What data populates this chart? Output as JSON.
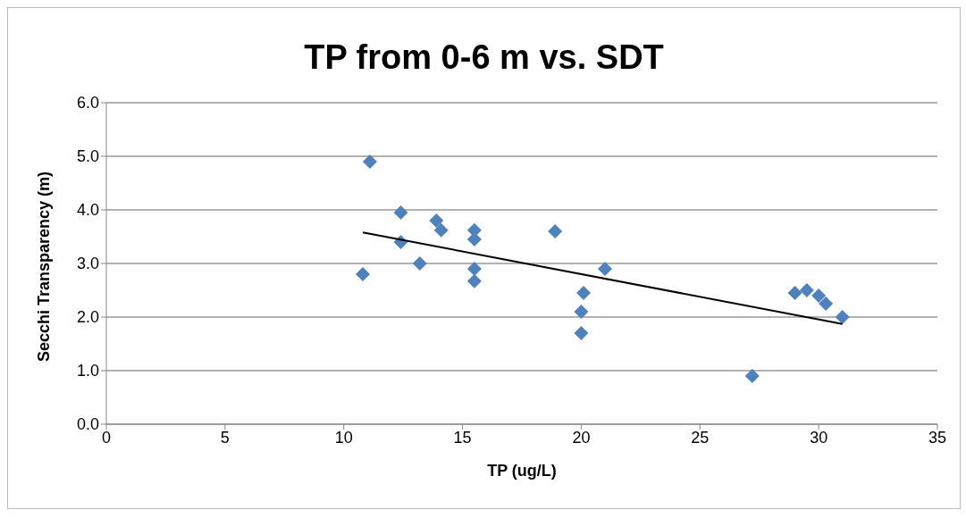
{
  "chart_data": {
    "type": "scatter",
    "title": "TP from 0-6 m vs. SDT",
    "xlabel": "TP (ug/L)",
    "ylabel": "Secchi Transparency (m)",
    "series": [
      {
        "type": "scatter",
        "color": "#4f81bd",
        "marker": "diamond",
        "x": [
          11.1,
          10.8,
          12.4,
          12.4,
          13.2,
          13.9,
          14.1,
          15.5,
          15.5,
          15.5,
          15.5,
          18.9,
          21.0,
          20.1,
          20.0,
          20.0,
          27.2,
          29.0,
          29.5,
          30.0,
          30.3,
          31.0
        ],
        "values": [
          4.9,
          2.8,
          3.95,
          3.4,
          3.0,
          3.8,
          3.62,
          3.62,
          3.45,
          2.9,
          2.67,
          3.6,
          2.9,
          2.45,
          2.1,
          1.7,
          0.9,
          2.45,
          2.5,
          2.4,
          2.25,
          2.0
        ]
      },
      {
        "type": "line",
        "color": "#000000",
        "marker": "none",
        "x": [
          10.8,
          31.0
        ],
        "values": [
          3.58,
          1.87
        ]
      }
    ],
    "xlim": [
      0,
      35
    ],
    "xticks": [
      0,
      5,
      10,
      15,
      20,
      25,
      30,
      35
    ],
    "ylim": [
      0,
      6
    ],
    "yticks": [
      {
        "value": 0,
        "label": "0.0"
      },
      {
        "value": 1,
        "label": "1.0"
      },
      {
        "value": 2,
        "label": "2.0"
      },
      {
        "value": 3,
        "label": "3.0"
      },
      {
        "value": 4,
        "label": "4.0"
      },
      {
        "value": 5,
        "label": "5.0"
      },
      {
        "value": 6,
        "label": "6.0"
      }
    ],
    "grid": "y",
    "legend": false
  }
}
